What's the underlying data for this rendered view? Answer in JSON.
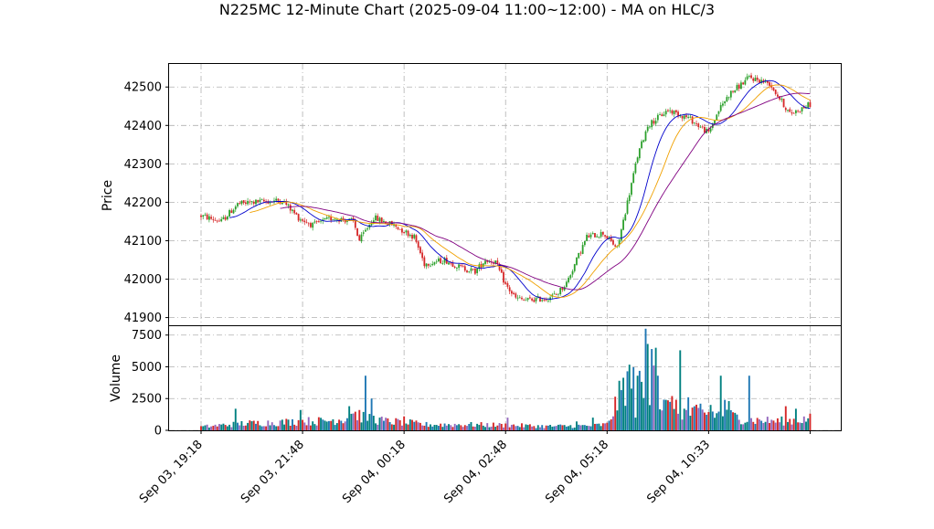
{
  "chart_data": {
    "type": "candlestick",
    "title": "N225MC 12-Minute Chart (2025-09-04 11:00~12:00) - MA on HLC/3",
    "ylabel": "Price",
    "volume_ylabel": "Volume",
    "price_ylim": [
      41880,
      42560
    ],
    "price_yticks": [
      41900,
      42000,
      42100,
      42200,
      42300,
      42400,
      42500
    ],
    "volume_ylim": [
      0,
      8200
    ],
    "volume_yticks": [
      0,
      2500,
      5000,
      7500
    ],
    "volume_ytick_labels": [
      "0",
      "2500",
      "5000",
      "7500"
    ],
    "xtick_labels": [
      "Sep 03, 19:18",
      "Sep 03, 21:48",
      "Sep 04, 00:18",
      "Sep 04, 02:48",
      "Sep 04, 05:18",
      "Sep 04, 10:33"
    ],
    "xtick_index": [
      0,
      50,
      100,
      150,
      200,
      250
    ],
    "bar_count": 301,
    "grid": true,
    "colors": {
      "up": "#2ca02c",
      "down": "#d62728",
      "ma_fast": "#0000cc",
      "ma_mid": "#f0a000",
      "ma_slow": "#800080"
    },
    "price_anchors": [
      [
        0,
        42165
      ],
      [
        10,
        42150
      ],
      [
        18,
        42195
      ],
      [
        25,
        42200
      ],
      [
        40,
        42205
      ],
      [
        48,
        42160
      ],
      [
        55,
        42140
      ],
      [
        65,
        42160
      ],
      [
        75,
        42150
      ],
      [
        78,
        42100
      ],
      [
        85,
        42160
      ],
      [
        95,
        42140
      ],
      [
        105,
        42110
      ],
      [
        110,
        42040
      ],
      [
        120,
        42050
      ],
      [
        128,
        42030
      ],
      [
        135,
        42020
      ],
      [
        140,
        42050
      ],
      [
        145,
        42045
      ],
      [
        150,
        41985
      ],
      [
        155,
        41950
      ],
      [
        160,
        41945
      ],
      [
        170,
        41950
      ],
      [
        175,
        41960
      ],
      [
        180,
        41990
      ],
      [
        185,
        42050
      ],
      [
        190,
        42110
      ],
      [
        198,
        42120
      ],
      [
        205,
        42080
      ],
      [
        210,
        42200
      ],
      [
        215,
        42320
      ],
      [
        220,
        42400
      ],
      [
        230,
        42440
      ],
      [
        240,
        42420
      ],
      [
        250,
        42380
      ],
      [
        255,
        42440
      ],
      [
        260,
        42480
      ],
      [
        270,
        42525
      ],
      [
        280,
        42510
      ],
      [
        285,
        42470
      ],
      [
        290,
        42430
      ],
      [
        300,
        42455
      ]
    ],
    "volume_anchors": [
      [
        0,
        300
      ],
      [
        20,
        600
      ],
      [
        40,
        700
      ],
      [
        50,
        800
      ],
      [
        60,
        800
      ],
      [
        70,
        1000
      ],
      [
        75,
        1500
      ],
      [
        80,
        1200
      ],
      [
        90,
        800
      ],
      [
        100,
        700
      ],
      [
        110,
        500
      ],
      [
        130,
        500
      ],
      [
        150,
        450
      ],
      [
        170,
        350
      ],
      [
        190,
        400
      ],
      [
        200,
        500
      ],
      [
        210,
        4500
      ],
      [
        220,
        3000
      ],
      [
        230,
        2000
      ],
      [
        240,
        1500
      ],
      [
        250,
        1500
      ],
      [
        260,
        1300
      ],
      [
        270,
        900
      ],
      [
        285,
        800
      ],
      [
        300,
        1000
      ]
    ],
    "volume_spikes": [
      [
        17,
        1700
      ],
      [
        49,
        1600
      ],
      [
        73,
        1900
      ],
      [
        74,
        1600
      ],
      [
        74,
        1300
      ],
      [
        78,
        1600
      ],
      [
        81,
        4300
      ],
      [
        84,
        2500
      ],
      [
        100,
        1100
      ],
      [
        151,
        1000
      ],
      [
        185,
        700
      ],
      [
        193,
        1000
      ],
      [
        214,
        1000
      ],
      [
        215,
        4300
      ],
      [
        219,
        8000
      ],
      [
        220,
        6800
      ],
      [
        222,
        6400
      ],
      [
        223,
        5100
      ],
      [
        224,
        6500
      ],
      [
        225,
        4300
      ],
      [
        229,
        2400
      ],
      [
        232,
        2700
      ],
      [
        236,
        6300
      ],
      [
        240,
        2600
      ],
      [
        246,
        2100
      ],
      [
        251,
        2000
      ],
      [
        256,
        4300
      ],
      [
        258,
        2400
      ],
      [
        260,
        2300
      ],
      [
        270,
        4300
      ],
      [
        288,
        1900
      ],
      [
        293,
        1700
      ]
    ]
  }
}
